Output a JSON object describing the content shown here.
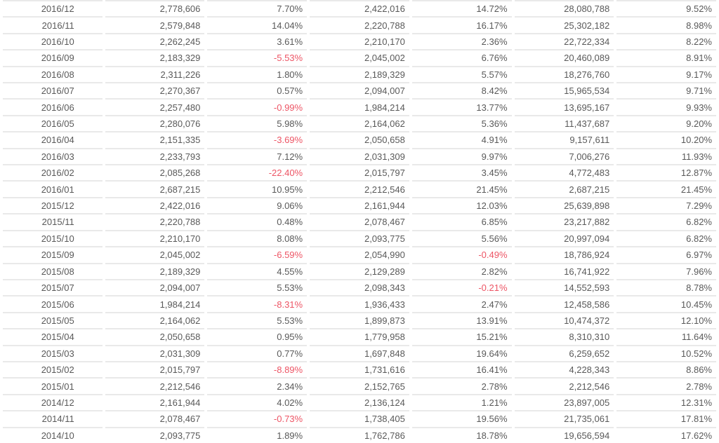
{
  "meta": {
    "background_color": "#ffffff",
    "row_border_color": "#e9e9e9",
    "text_color": "#595959",
    "negative_value_color": "#ed5565"
  },
  "chart_data": {
    "type": "table",
    "grid": "horizontal-row-separators",
    "column_count": 7,
    "column_alignment": "right",
    "negative_percentages_shown_in_red": true,
    "rows": [
      [
        "2016/12",
        "2,778,606",
        "7.70%",
        "2,422,016",
        "14.72%",
        "28,080,788",
        "9.52%"
      ],
      [
        "2016/11",
        "2,579,848",
        "14.04%",
        "2,220,788",
        "16.17%",
        "25,302,182",
        "8.98%"
      ],
      [
        "2016/10",
        "2,262,245",
        "3.61%",
        "2,210,170",
        "2.36%",
        "22,722,334",
        "8.22%"
      ],
      [
        "2016/09",
        "2,183,329",
        "-5.53%",
        "2,045,002",
        "6.76%",
        "20,460,089",
        "8.91%"
      ],
      [
        "2016/08",
        "2,311,226",
        "1.80%",
        "2,189,329",
        "5.57%",
        "18,276,760",
        "9.17%"
      ],
      [
        "2016/07",
        "2,270,367",
        "0.57%",
        "2,094,007",
        "8.42%",
        "15,965,534",
        "9.71%"
      ],
      [
        "2016/06",
        "2,257,480",
        "-0.99%",
        "1,984,214",
        "13.77%",
        "13,695,167",
        "9.93%"
      ],
      [
        "2016/05",
        "2,280,076",
        "5.98%",
        "2,164,062",
        "5.36%",
        "11,437,687",
        "9.20%"
      ],
      [
        "2016/04",
        "2,151,335",
        "-3.69%",
        "2,050,658",
        "4.91%",
        "9,157,611",
        "10.20%"
      ],
      [
        "2016/03",
        "2,233,793",
        "7.12%",
        "2,031,309",
        "9.97%",
        "7,006,276",
        "11.93%"
      ],
      [
        "2016/02",
        "2,085,268",
        "-22.40%",
        "2,015,797",
        "3.45%",
        "4,772,483",
        "12.87%"
      ],
      [
        "2016/01",
        "2,687,215",
        "10.95%",
        "2,212,546",
        "21.45%",
        "2,687,215",
        "21.45%"
      ],
      [
        "2015/12",
        "2,422,016",
        "9.06%",
        "2,161,944",
        "12.03%",
        "25,639,898",
        "7.29%"
      ],
      [
        "2015/11",
        "2,220,788",
        "0.48%",
        "2,078,467",
        "6.85%",
        "23,217,882",
        "6.82%"
      ],
      [
        "2015/10",
        "2,210,170",
        "8.08%",
        "2,093,775",
        "5.56%",
        "20,997,094",
        "6.82%"
      ],
      [
        "2015/09",
        "2,045,002",
        "-6.59%",
        "2,054,990",
        "-0.49%",
        "18,786,924",
        "6.97%"
      ],
      [
        "2015/08",
        "2,189,329",
        "4.55%",
        "2,129,289",
        "2.82%",
        "16,741,922",
        "7.96%"
      ],
      [
        "2015/07",
        "2,094,007",
        "5.53%",
        "2,098,343",
        "-0.21%",
        "14,552,593",
        "8.78%"
      ],
      [
        "2015/06",
        "1,984,214",
        "-8.31%",
        "1,936,433",
        "2.47%",
        "12,458,586",
        "10.45%"
      ],
      [
        "2015/05",
        "2,164,062",
        "5.53%",
        "1,899,873",
        "13.91%",
        "10,474,372",
        "12.10%"
      ],
      [
        "2015/04",
        "2,050,658",
        "0.95%",
        "1,779,958",
        "15.21%",
        "8,310,310",
        "11.64%"
      ],
      [
        "2015/03",
        "2,031,309",
        "0.77%",
        "1,697,848",
        "19.64%",
        "6,259,652",
        "10.52%"
      ],
      [
        "2015/02",
        "2,015,797",
        "-8.89%",
        "1,731,616",
        "16.41%",
        "4,228,343",
        "8.86%"
      ],
      [
        "2015/01",
        "2,212,546",
        "2.34%",
        "2,152,765",
        "2.78%",
        "2,212,546",
        "2.78%"
      ],
      [
        "2014/12",
        "2,161,944",
        "4.02%",
        "2,136,124",
        "1.21%",
        "23,897,005",
        "12.31%"
      ],
      [
        "2014/11",
        "2,078,467",
        "-0.73%",
        "1,738,405",
        "19.56%",
        "21,735,061",
        "17.81%"
      ],
      [
        "2014/10",
        "2,093,775",
        "1.89%",
        "1,762,786",
        "18.78%",
        "19,656,594",
        "17.62%"
      ]
    ]
  }
}
